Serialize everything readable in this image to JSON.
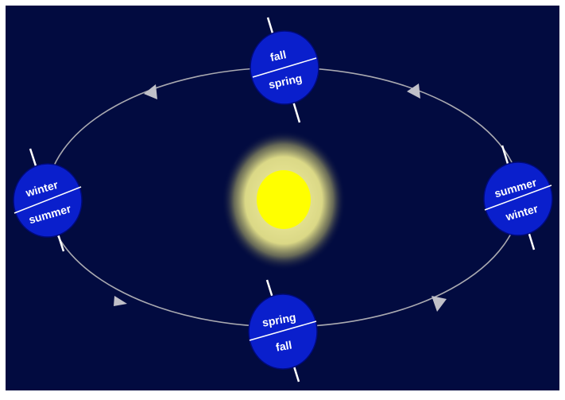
{
  "colors": {
    "frame": "#ffffff",
    "space": "#020b40",
    "orbit": "#a9a9b0",
    "arrow": "#c0c0c8",
    "sun": "#ffff00",
    "sun_glow": "#e6e38a",
    "earth": "#0a1fcc",
    "earth_edge": "#000a7a",
    "axis": "#ffffff"
  },
  "earths": [
    {
      "id": "top",
      "north": "fall",
      "south": "spring"
    },
    {
      "id": "left",
      "north": "winter",
      "south": "summer"
    },
    {
      "id": "right",
      "north": "summer",
      "south": "winter"
    },
    {
      "id": "bottom",
      "north": "spring",
      "south": "fall"
    }
  ],
  "arrows": [
    {
      "id": "top-left",
      "direction": "left"
    },
    {
      "id": "top-right",
      "direction": "left"
    },
    {
      "id": "bottom-left",
      "direction": "right"
    },
    {
      "id": "bottom-right",
      "direction": "right"
    }
  ]
}
